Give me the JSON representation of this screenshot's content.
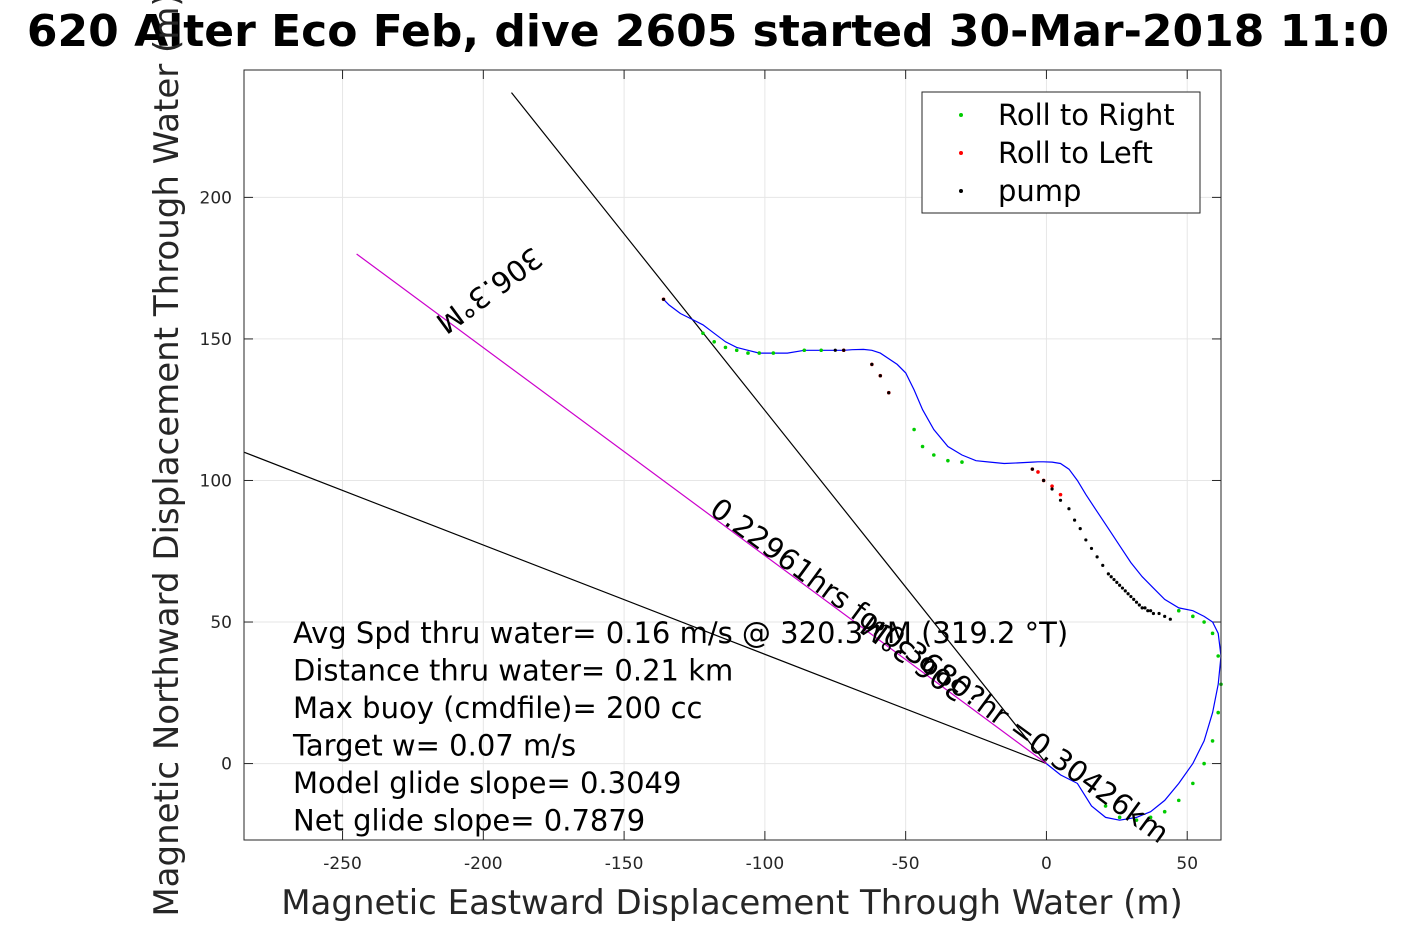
{
  "chart_data": {
    "type": "line",
    "title": "620 Alter Eco Feb, dive 2605 started 30-Mar-2018 11:0",
    "xlabel": "Magnetic Eastward Displacement Through Water (m)",
    "ylabel": "Magnetic Northward Displacement Through Water (m)",
    "xlim": [
      -285,
      62
    ],
    "ylim": [
      -27,
      245
    ],
    "xticks": [
      -250,
      -200,
      -150,
      -100,
      -50,
      0,
      50
    ],
    "yticks": [
      0,
      50,
      100,
      150,
      200
    ],
    "grid": true,
    "legend_position": "top-right",
    "legend": [
      {
        "label": "Roll to Right",
        "color": "#00cc00"
      },
      {
        "label": "Roll to Left",
        "color": "#ff0000"
      },
      {
        "label": "pump",
        "color": "#000000"
      }
    ],
    "track": {
      "color": "#0000ff",
      "x": [
        0,
        5,
        11,
        16,
        21,
        26,
        32,
        37,
        42,
        47,
        52,
        56,
        59,
        61,
        62,
        61,
        59,
        56,
        52,
        47,
        42,
        38,
        34,
        30,
        26,
        22,
        18,
        14,
        11,
        8,
        5,
        2,
        -1,
        -3,
        -5,
        -10,
        -15,
        -20,
        -25,
        -30,
        -35,
        -40,
        -44,
        -47,
        -50,
        -53,
        -56,
        -59,
        -62,
        -65,
        -69,
        -72,
        -75,
        -80,
        -86,
        -92,
        -97,
        -102,
        -106,
        -110,
        -114,
        -118,
        -122,
        -126,
        -130,
        -134,
        -136
      ],
      "y": [
        0,
        -4,
        -7,
        -15,
        -19,
        -20,
        -19,
        -17,
        -13,
        -7,
        0,
        8,
        18,
        28,
        38,
        46,
        50,
        52,
        54,
        55,
        58,
        62,
        66,
        71,
        77,
        83,
        89,
        95,
        100,
        104,
        106,
        106.5,
        106.6,
        106.6,
        106.5,
        106.2,
        106,
        106.5,
        107,
        109,
        112,
        118,
        125,
        132,
        138,
        141,
        143,
        145,
        146,
        146.3,
        146.2,
        146,
        146,
        146,
        146,
        145,
        145,
        145,
        146,
        147,
        149,
        152,
        155,
        157,
        159,
        162,
        164
      ]
    },
    "roll_right": {
      "color": "#00cc00",
      "x": [
        21,
        26,
        32,
        37,
        42,
        47,
        52,
        56,
        59,
        61,
        62,
        61,
        59,
        56,
        52,
        47,
        -30,
        -35,
        -40,
        -44,
        -47,
        -80,
        -86,
        -97,
        -102,
        -106,
        -110,
        -114,
        -118,
        -122
      ],
      "y": [
        -15,
        -19,
        -20,
        -19,
        -17,
        -13,
        -7,
        0,
        8,
        18,
        28,
        38,
        46,
        50,
        52,
        54,
        106.5,
        107,
        109,
        112,
        118,
        146,
        146,
        145,
        145,
        145,
        146,
        147,
        149,
        152
      ]
    },
    "roll_left": {
      "color": "#ff0000",
      "x": [
        -136,
        -72,
        -62,
        -59,
        -56,
        -5,
        -3,
        -1,
        2,
        5
      ],
      "y": [
        164,
        146,
        141,
        137,
        131,
        104,
        103,
        100,
        98,
        95
      ]
    },
    "pump": {
      "color": "#000000",
      "x": [
        -136,
        -72,
        -75,
        -62,
        -59,
        -56,
        -5,
        -1,
        2,
        5,
        8,
        10,
        12,
        14,
        16,
        18,
        20,
        22,
        23,
        24,
        25,
        26,
        27,
        28,
        29,
        30,
        31,
        32,
        33,
        34,
        35,
        36,
        37,
        38,
        40,
        42,
        44
      ],
      "y": [
        164,
        146,
        146,
        141,
        137,
        131,
        104,
        100,
        97,
        93,
        90,
        86,
        83,
        79,
        76,
        73,
        70,
        67,
        66,
        65,
        64,
        63,
        62,
        61,
        60,
        59,
        58,
        57,
        56,
        55,
        55,
        54,
        54,
        53,
        53,
        52,
        51
      ]
    },
    "reference_lines": [
      {
        "color": "#000000",
        "x": [
          0,
          -190
        ],
        "y": [
          0,
          237
        ]
      },
      {
        "color": "#000000",
        "x": [
          0,
          -285
        ],
        "y": [
          0,
          110
        ]
      },
      {
        "color": "#cc00cc",
        "x": [
          0,
          -245
        ],
        "y": [
          0,
          180
        ]
      }
    ],
    "line_labels": [
      {
        "text": "0.22961hrs for0.3680?hr =0.30426km",
        "x": -40,
        "y": 30,
        "angle_deg": -36.3
      },
      {
        "text": "306.3°M",
        "x": -45,
        "y": 40,
        "angle_deg": 143.7
      },
      {
        "text": "306.3°M",
        "x": -200,
        "y": 170,
        "angle_deg": -143.7
      }
    ],
    "annotations": [
      "Avg Spd thru water=  0.16 m/s @ 320.3 °M (319.2 °T)",
      "Distance thru water=  0.21 km",
      "Max buoy (cmdfile)= 200 cc",
      "Target w= 0.07 m/s",
      "Model glide slope= 0.3049",
      "Net glide slope= 0.7879"
    ]
  }
}
